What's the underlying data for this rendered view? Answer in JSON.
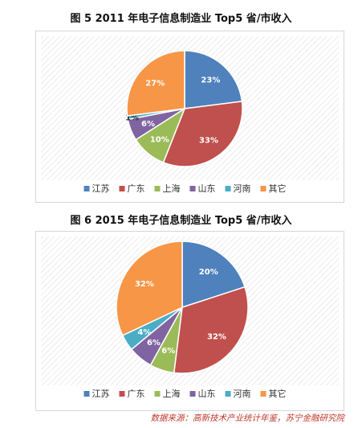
{
  "figures": [
    {
      "title": "图 5  2011 年电子信息制造业 Top5 省/市收入"
    },
    {
      "title": "图 6  2015 年电子信息制造业 Top5 省/市收入"
    }
  ],
  "source": "数据来源：高新技术产业统计年鉴，苏宁金融研究院",
  "colors": {
    "江苏": "#4f81bd",
    "广东": "#c0504d",
    "上海": "#9bbb59",
    "山东": "#8064a2",
    "河南": "#4bacc6",
    "其它": "#f79646"
  },
  "chart_data": [
    {
      "type": "pie",
      "title": "图 5  2011 年电子信息制造业 Top5 省/市收入",
      "categories": [
        "江苏",
        "广东",
        "上海",
        "山东",
        "河南",
        "其它"
      ],
      "values": [
        23,
        33,
        10,
        6,
        1,
        27
      ],
      "labels": [
        "23%",
        "33%",
        "10%",
        "6%",
        "1%",
        "27%"
      ],
      "legend": "bottom"
    },
    {
      "type": "pie",
      "title": "图 6  2015 年电子信息制造业 Top5 省/市收入",
      "categories": [
        "江苏",
        "广东",
        "上海",
        "山东",
        "河南",
        "其它"
      ],
      "values": [
        20,
        32,
        6,
        6,
        4,
        32
      ],
      "labels": [
        "20%",
        "32%",
        "6%",
        "6%",
        "4%",
        "32%"
      ],
      "legend": "bottom"
    }
  ]
}
